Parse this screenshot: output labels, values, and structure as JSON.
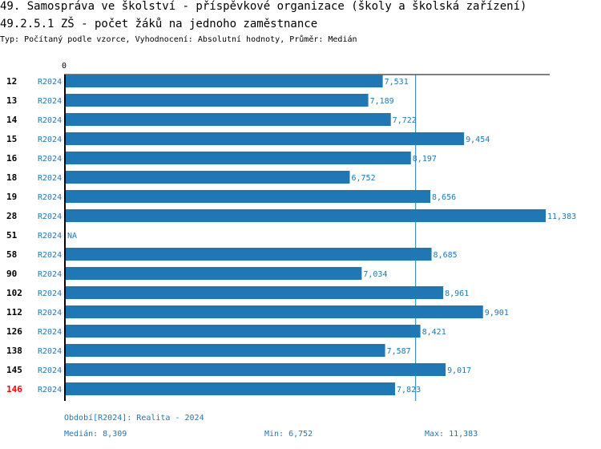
{
  "header": {
    "title": "49. Samospráva ve školství - příspěvkové organizace (školy a školská zařízení)",
    "subtitle": "49.2.5.1 ZŠ - počet žáků na jednoho zaměstnance",
    "info": "Typ: Počítaný podle vzorce, Vyhodnocení: Absolutní hodnoty, Průměr: Medián"
  },
  "chart_data": {
    "type": "bar",
    "orientation": "horizontal",
    "axis_zero_label": "0",
    "xlim": [
      0,
      11.383
    ],
    "bar_color": "#1f77b4",
    "highlight_color": "#ff0000",
    "categories": [
      "12",
      "13",
      "14",
      "15",
      "16",
      "18",
      "19",
      "28",
      "51",
      "58",
      "90",
      "102",
      "112",
      "126",
      "138",
      "145",
      "146"
    ],
    "period": "R2024",
    "highlighted": "146",
    "values": [
      7.531,
      7.189,
      7.722,
      9.454,
      8.197,
      6.752,
      8.656,
      11.383,
      null,
      8.685,
      7.034,
      8.961,
      9.901,
      8.421,
      7.587,
      9.017,
      7.823
    ],
    "labels": [
      "7,531",
      "7,189",
      "7,722",
      "9,454",
      "8,197",
      "6,752",
      "8,656",
      "11,383",
      "NA",
      "8,685",
      "7,034",
      "8,961",
      "9,901",
      "8,421",
      "7,587",
      "9,017",
      "7,823"
    ],
    "median": 8.309
  },
  "footer": {
    "period_note": "Období[R2024]: Realita - 2024",
    "median": "Medián: 8,309",
    "min": "Min: 6,752",
    "max": "Max: 11,383"
  }
}
